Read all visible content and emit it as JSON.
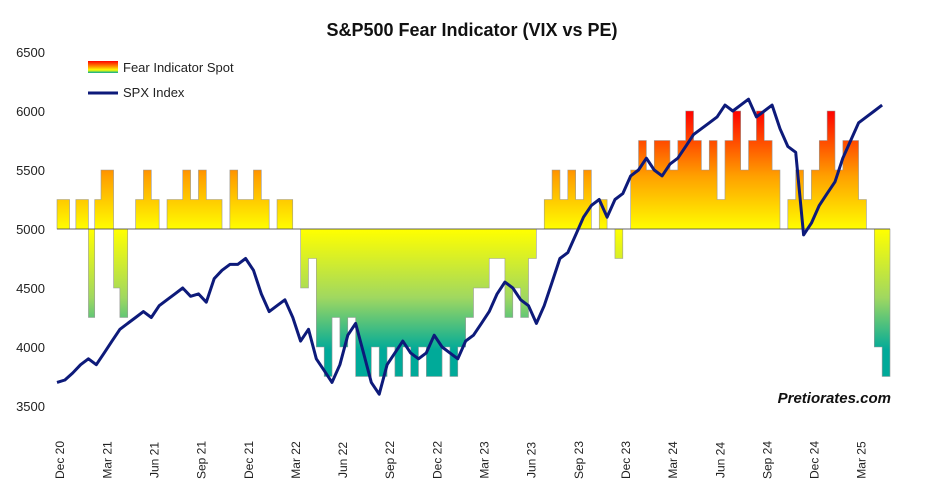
{
  "chart_data": {
    "type": "area",
    "title": "S&P500 Fear Indicator (VIX vs PE)",
    "xlabel": "",
    "ylabel": "",
    "ylim": [
      3500,
      6500
    ],
    "yticks": [
      3500,
      4000,
      4500,
      5000,
      5500,
      6000,
      6500
    ],
    "baseline": 5000,
    "x_tick_labels": [
      "Dec 20",
      "Mar 21",
      "Jun 21",
      "Sep 21",
      "Dec 21",
      "Mar 22",
      "Jun 22",
      "Sep 22",
      "Dec 22",
      "Mar 23",
      "Jun 23",
      "Sep 23",
      "Dec 23",
      "Mar 24",
      "Jun 24",
      "Sep 24",
      "Dec 24",
      "Mar 25"
    ],
    "x_range_months": [
      0,
      53
    ],
    "legend_position": "top-left",
    "credit": "Pretiorates.com",
    "colors": {
      "spx": "#0d1a7a",
      "fear_high": "#ff0000",
      "fear_mid": "#ffa500",
      "fear_base": "#ffff00",
      "fear_low": "#00aa99"
    },
    "series": [
      {
        "name": "Fear Indicator Spot",
        "kind": "area",
        "x_months": [
          0,
          0.4,
          0.8,
          1.2,
          1.6,
          2.0,
          2.4,
          2.8,
          3.2,
          3.6,
          4.0,
          4.5,
          5.0,
          5.5,
          6.0,
          6.5,
          7.0,
          7.5,
          8.0,
          8.5,
          9.0,
          9.5,
          10.0,
          10.5,
          11.0,
          11.5,
          12.0,
          12.5,
          13.0,
          13.5,
          14.0,
          14.5,
          15.0,
          15.5,
          16.0,
          16.5,
          17.0,
          17.5,
          18.0,
          18.5,
          19.0,
          19.5,
          20.0,
          20.5,
          21.0,
          21.5,
          22.0,
          22.5,
          23.0,
          23.5,
          24.0,
          24.5,
          25.0,
          25.5,
          26.0,
          26.5,
          27.0,
          27.5,
          28.0,
          28.5,
          29.0,
          29.5,
          30.0,
          30.5,
          31.0,
          31.5,
          32.0,
          32.5,
          33.0,
          33.5,
          34.0,
          34.5,
          35.0,
          35.5,
          36.0,
          36.5,
          37.0,
          37.5,
          38.0,
          38.5,
          39.0,
          39.5,
          40.0,
          40.5,
          41.0,
          41.5,
          42.0,
          42.5,
          43.0,
          43.5,
          44.0,
          44.5,
          45.0,
          45.5,
          46.0,
          46.5,
          47.0,
          47.5,
          48.0,
          48.5,
          49.0,
          49.5,
          50.0,
          50.5,
          51.0,
          51.5,
          52.0,
          52.5
        ],
        "values": [
          5250,
          5250,
          5000,
          5250,
          5250,
          4250,
          5250,
          5500,
          5500,
          4500,
          4250,
          5000,
          5250,
          5500,
          5250,
          5000,
          5250,
          5250,
          5500,
          5250,
          5500,
          5250,
          5250,
          5000,
          5500,
          5250,
          5250,
          5500,
          5250,
          5000,
          5250,
          5250,
          5000,
          4500,
          4750,
          4000,
          3750,
          4250,
          4000,
          4250,
          3750,
          3750,
          4000,
          3750,
          4000,
          3750,
          4000,
          3750,
          4000,
          3750,
          3750,
          4000,
          3750,
          4000,
          4250,
          4500,
          4500,
          4750,
          4750,
          4250,
          4500,
          4250,
          4750,
          5000,
          5250,
          5500,
          5250,
          5500,
          5250,
          5500,
          5000,
          5250,
          5000,
          4750,
          5000,
          5500,
          5750,
          5500,
          5750,
          5750,
          5500,
          5750,
          6000,
          5750,
          5500,
          5750,
          5250,
          5750,
          6000,
          5500,
          5750,
          6000,
          5750,
          5500,
          5000,
          5250,
          5500,
          5250,
          5500,
          5750,
          6000,
          5500,
          5750,
          5750,
          5250,
          5000,
          4000,
          3750
        ]
      },
      {
        "name": "SPX Index",
        "kind": "line",
        "x_months": [
          0,
          0.5,
          1.0,
          1.5,
          2.0,
          2.5,
          3.0,
          3.5,
          4.0,
          4.5,
          5.0,
          5.5,
          6.0,
          6.5,
          7.0,
          7.5,
          8.0,
          8.5,
          9.0,
          9.5,
          10.0,
          10.5,
          11.0,
          11.5,
          12.0,
          12.5,
          13.0,
          13.5,
          14.0,
          14.5,
          15.0,
          15.5,
          16.0,
          16.5,
          17.0,
          17.5,
          18.0,
          18.5,
          19.0,
          19.5,
          20.0,
          20.5,
          21.0,
          21.5,
          22.0,
          22.5,
          23.0,
          23.5,
          24.0,
          24.5,
          25.0,
          25.5,
          26.0,
          26.5,
          27.0,
          27.5,
          28.0,
          28.5,
          29.0,
          29.5,
          30.0,
          30.5,
          31.0,
          31.5,
          32.0,
          32.5,
          33.0,
          33.5,
          34.0,
          34.5,
          35.0,
          35.5,
          36.0,
          36.5,
          37.0,
          37.5,
          38.0,
          38.5,
          39.0,
          39.5,
          40.0,
          40.5,
          41.0,
          41.5,
          42.0,
          42.5,
          43.0,
          43.5,
          44.0,
          44.5,
          45.0,
          45.5,
          46.0,
          46.5,
          47.0,
          47.5,
          48.0,
          48.5,
          49.0,
          49.5,
          50.0,
          50.5,
          51.0,
          51.5,
          52.0,
          52.5
        ],
        "values": [
          3700,
          3720,
          3780,
          3850,
          3900,
          3850,
          3950,
          4050,
          4150,
          4200,
          4250,
          4300,
          4250,
          4350,
          4400,
          4450,
          4500,
          4430,
          4450,
          4380,
          4580,
          4650,
          4700,
          4700,
          4750,
          4650,
          4450,
          4300,
          4350,
          4400,
          4250,
          4050,
          4150,
          3900,
          3800,
          3700,
          3850,
          4100,
          4200,
          3950,
          3700,
          3600,
          3850,
          3950,
          4050,
          3950,
          3900,
          3950,
          4100,
          4000,
          3950,
          3900,
          4050,
          4100,
          4200,
          4300,
          4450,
          4550,
          4500,
          4400,
          4350,
          4200,
          4350,
          4550,
          4750,
          4800,
          4950,
          5100,
          5200,
          5250,
          5100,
          5250,
          5300,
          5450,
          5500,
          5600,
          5500,
          5450,
          5550,
          5600,
          5700,
          5800,
          5850,
          5900,
          5950,
          6050,
          6000,
          6050,
          6100,
          5950,
          6000,
          6050,
          5850,
          5700,
          5650,
          4950,
          5050,
          5200,
          5300,
          5400,
          5600,
          5750,
          5900,
          5950,
          6000,
          6050
        ]
      }
    ]
  }
}
